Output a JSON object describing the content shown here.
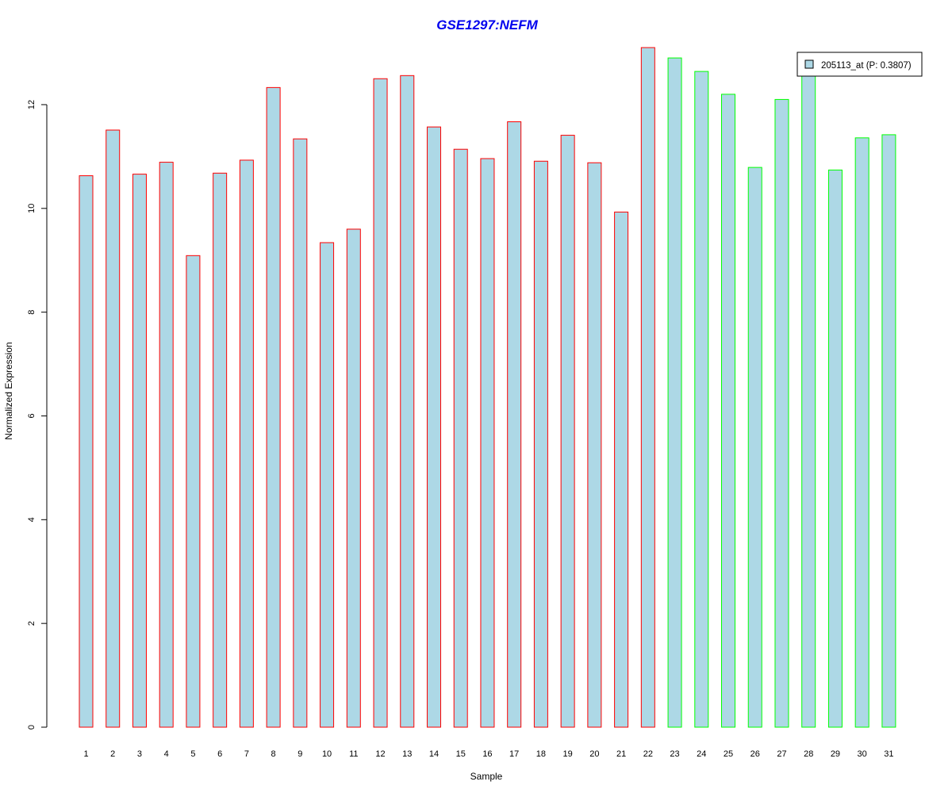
{
  "chart_data": {
    "type": "bar",
    "title": "GSE1297:NEFM",
    "xlabel": "Sample",
    "ylabel": "Normalized Expression",
    "ylim": [
      0,
      13.1
    ],
    "yticks": [
      0,
      2,
      4,
      6,
      8,
      10,
      12
    ],
    "categories": [
      "1",
      "2",
      "3",
      "4",
      "5",
      "6",
      "7",
      "8",
      "9",
      "10",
      "11",
      "12",
      "13",
      "14",
      "15",
      "16",
      "17",
      "18",
      "19",
      "20",
      "21",
      "22",
      "23",
      "24",
      "25",
      "26",
      "27",
      "28",
      "29",
      "30",
      "31"
    ],
    "series": [
      {
        "name": "205113_at (P: 0.3807)",
        "values": [
          10.63,
          11.51,
          10.66,
          10.89,
          9.09,
          10.68,
          10.93,
          12.33,
          11.34,
          9.34,
          9.6,
          12.5,
          12.56,
          11.57,
          11.14,
          10.96,
          11.67,
          10.91,
          11.41,
          10.88,
          9.93,
          13.1,
          12.9,
          12.64,
          12.2,
          10.79,
          12.1,
          12.6,
          10.74,
          11.36,
          11.42
        ],
        "fill": "#add8e6",
        "group_borders": [
          "#ff0000",
          "#ff0000",
          "#ff0000",
          "#ff0000",
          "#ff0000",
          "#ff0000",
          "#ff0000",
          "#ff0000",
          "#ff0000",
          "#ff0000",
          "#ff0000",
          "#ff0000",
          "#ff0000",
          "#ff0000",
          "#ff0000",
          "#ff0000",
          "#ff0000",
          "#ff0000",
          "#ff0000",
          "#ff0000",
          "#ff0000",
          "#ff0000",
          "#00ff00",
          "#00ff00",
          "#00ff00",
          "#00ff00",
          "#00ff00",
          "#00ff00",
          "#00ff00",
          "#00ff00",
          "#00ff00"
        ]
      }
    ],
    "title_color": "#0000ee",
    "legend_position": "top-right",
    "grid": false
  }
}
